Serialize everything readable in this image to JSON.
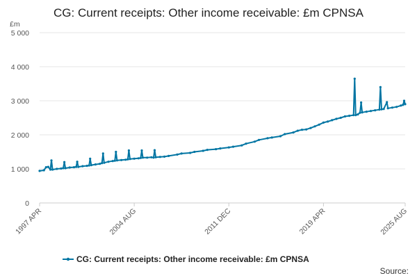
{
  "chart_data": {
    "type": "line",
    "title": "CG: Current receipts: Other income receivable: £m CPNSA",
    "y_unit": "£m",
    "ylim": [
      0,
      5000
    ],
    "y_ticks": [
      {
        "value": 0,
        "label": "0"
      },
      {
        "value": 1000,
        "label": "1 000"
      },
      {
        "value": 2000,
        "label": "2 000"
      },
      {
        "value": 3000,
        "label": "3 000"
      },
      {
        "value": 4000,
        "label": "4 000"
      },
      {
        "value": 5000,
        "label": "5 000"
      }
    ],
    "x_range": [
      "1997-04",
      "2025-08"
    ],
    "x_ticks": [
      {
        "value": "1997-04",
        "label": "1997 APR"
      },
      {
        "value": "2004-08",
        "label": "2004 AUG"
      },
      {
        "value": "2011-12",
        "label": "2011 DEC"
      },
      {
        "value": "2019-04",
        "label": "2019 APR"
      },
      {
        "value": "2025-08",
        "label": "2025 AUG"
      }
    ],
    "grid": true,
    "legend_position": "bottom",
    "series": [
      {
        "name": "CG: Current receipts: Other income receivable: £m CPNSA",
        "color": "#0075a3",
        "points": [
          [
            "1997-04",
            940
          ],
          [
            "1997-08",
            960
          ],
          [
            "1997-10",
            1050
          ],
          [
            "1997-12",
            1060
          ],
          [
            "1998-02",
            980
          ],
          [
            "1998-03",
            1250
          ],
          [
            "1998-04",
            980
          ],
          [
            "1998-08",
            1000
          ],
          [
            "1998-12",
            1010
          ],
          [
            "1999-02",
            1020
          ],
          [
            "1999-03",
            1200
          ],
          [
            "1999-04",
            1020
          ],
          [
            "1999-08",
            1040
          ],
          [
            "1999-12",
            1050
          ],
          [
            "2000-02",
            1060
          ],
          [
            "2000-03",
            1210
          ],
          [
            "2000-04",
            1060
          ],
          [
            "2000-08",
            1080
          ],
          [
            "2000-12",
            1090
          ],
          [
            "2001-02",
            1100
          ],
          [
            "2001-03",
            1300
          ],
          [
            "2001-04",
            1110
          ],
          [
            "2001-08",
            1130
          ],
          [
            "2001-12",
            1150
          ],
          [
            "2002-02",
            1170
          ],
          [
            "2002-03",
            1450
          ],
          [
            "2002-04",
            1180
          ],
          [
            "2002-08",
            1210
          ],
          [
            "2002-12",
            1230
          ],
          [
            "2003-02",
            1240
          ],
          [
            "2003-03",
            1500
          ],
          [
            "2003-04",
            1250
          ],
          [
            "2003-08",
            1260
          ],
          [
            "2003-12",
            1270
          ],
          [
            "2004-02",
            1280
          ],
          [
            "2004-03",
            1540
          ],
          [
            "2004-04",
            1290
          ],
          [
            "2004-08",
            1300
          ],
          [
            "2004-12",
            1310
          ],
          [
            "2005-02",
            1320
          ],
          [
            "2005-03",
            1540
          ],
          [
            "2005-04",
            1330
          ],
          [
            "2005-08",
            1330
          ],
          [
            "2005-12",
            1340
          ],
          [
            "2006-02",
            1330
          ],
          [
            "2006-03",
            1550
          ],
          [
            "2006-04",
            1340
          ],
          [
            "2006-08",
            1350
          ],
          [
            "2006-12",
            1360
          ],
          [
            "2007-04",
            1380
          ],
          [
            "2007-12",
            1420
          ],
          [
            "2008-04",
            1450
          ],
          [
            "2008-12",
            1470
          ],
          [
            "2009-04",
            1500
          ],
          [
            "2009-12",
            1530
          ],
          [
            "2010-04",
            1560
          ],
          [
            "2010-12",
            1580
          ],
          [
            "2011-04",
            1600
          ],
          [
            "2011-12",
            1630
          ],
          [
            "2012-04",
            1650
          ],
          [
            "2012-12",
            1690
          ],
          [
            "2013-04",
            1740
          ],
          [
            "2013-12",
            1800
          ],
          [
            "2014-04",
            1850
          ],
          [
            "2014-12",
            1900
          ],
          [
            "2015-04",
            1920
          ],
          [
            "2015-12",
            1960
          ],
          [
            "2016-04",
            2020
          ],
          [
            "2016-12",
            2070
          ],
          [
            "2017-04",
            2120
          ],
          [
            "2017-08",
            2150
          ],
          [
            "2017-12",
            2160
          ],
          [
            "2018-04",
            2200
          ],
          [
            "2018-08",
            2250
          ],
          [
            "2018-12",
            2300
          ],
          [
            "2019-04",
            2360
          ],
          [
            "2019-08",
            2390
          ],
          [
            "2019-12",
            2430
          ],
          [
            "2020-04",
            2470
          ],
          [
            "2020-08",
            2500
          ],
          [
            "2020-12",
            2540
          ],
          [
            "2021-04",
            2560
          ],
          [
            "2021-08",
            2580
          ],
          [
            "2021-09",
            3650
          ],
          [
            "2021-10",
            2580
          ],
          [
            "2021-12",
            2600
          ],
          [
            "2022-02",
            2650
          ],
          [
            "2022-03",
            2950
          ],
          [
            "2022-04",
            2660
          ],
          [
            "2022-08",
            2680
          ],
          [
            "2022-12",
            2700
          ],
          [
            "2023-04",
            2720
          ],
          [
            "2023-08",
            2740
          ],
          [
            "2023-09",
            3400
          ],
          [
            "2023-10",
            2750
          ],
          [
            "2023-12",
            2760
          ],
          [
            "2024-03",
            2960
          ],
          [
            "2024-04",
            2780
          ],
          [
            "2024-08",
            2800
          ],
          [
            "2024-12",
            2820
          ],
          [
            "2025-04",
            2860
          ],
          [
            "2025-06",
            2880
          ],
          [
            "2025-07",
            3000
          ],
          [
            "2025-08",
            2900
          ]
        ]
      }
    ]
  },
  "source_label": "Source:"
}
